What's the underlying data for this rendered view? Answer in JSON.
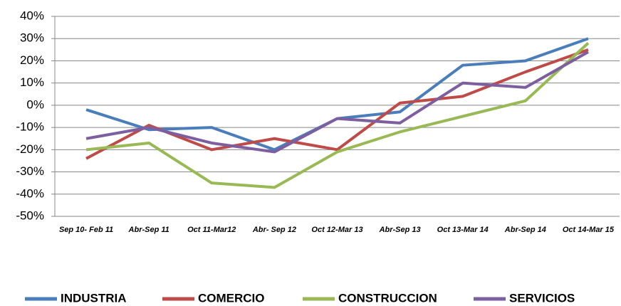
{
  "chart_data": {
    "type": "line",
    "categories": [
      "Sep 10- Feb 11",
      "Abr-Sep 11",
      "Oct 11-Mar12",
      "Abr- Sep 12",
      "Oct 12-Mar 13",
      "Abr-Sep 13",
      "Oct 13-Mar 14",
      "Abr-Sep 14",
      "Oct 14-Mar 15"
    ],
    "series": [
      {
        "name": "INDUSTRIA",
        "color": "#4a7ebb",
        "values": [
          -2,
          -11,
          -10,
          -20,
          -6,
          -3,
          18,
          20,
          30
        ]
      },
      {
        "name": "COMERCIO",
        "color": "#be4b48",
        "values": [
          -24,
          -9,
          -20,
          -15,
          -20,
          1,
          4,
          15,
          25
        ]
      },
      {
        "name": "CONSTRUCCION",
        "color": "#98b954",
        "values": [
          -20,
          -17,
          -35,
          -37,
          -21,
          -12,
          -5,
          2,
          28
        ]
      },
      {
        "name": "SERVICIOS",
        "color": "#7d5fa0",
        "values": [
          -15,
          -10,
          -17,
          -21,
          -6,
          -8,
          10,
          8,
          24
        ]
      }
    ],
    "ylim": [
      -50,
      40
    ],
    "yticks": [
      {
        "value": -50,
        "label": "-50%"
      },
      {
        "value": -40,
        "label": "-40%"
      },
      {
        "value": -30,
        "label": "-30%"
      },
      {
        "value": -20,
        "label": "-20%"
      },
      {
        "value": -10,
        "label": "-10%"
      },
      {
        "value": 0,
        "label": "0%"
      },
      {
        "value": 10,
        "label": "10%"
      },
      {
        "value": 20,
        "label": "20%"
      },
      {
        "value": 30,
        "label": "30%"
      },
      {
        "value": 40,
        "label": "40%"
      }
    ],
    "grid": true,
    "legend": "bottom"
  }
}
